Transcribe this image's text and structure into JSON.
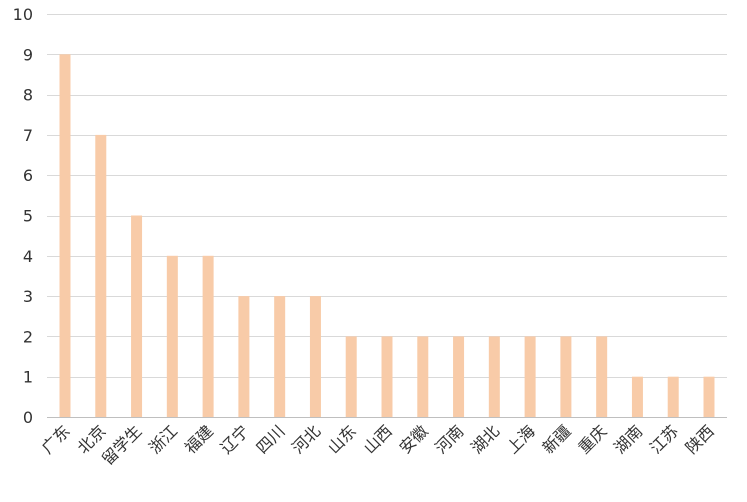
{
  "chart_data": {
    "type": "bar",
    "categories": [
      "广东",
      "北京",
      "留学生",
      "浙江",
      "福建",
      "辽宁",
      "四川",
      "河北",
      "山东",
      "山西",
      "安徽",
      "河南",
      "湖北",
      "上海",
      "新疆",
      "重庆",
      "湖南",
      "江苏",
      "陕西"
    ],
    "values": [
      9,
      7,
      5,
      4,
      4,
      3,
      3,
      3,
      2,
      2,
      2,
      2,
      2,
      2,
      2,
      2,
      1,
      1,
      1
    ],
    "title": "",
    "xlabel": "",
    "ylabel": "",
    "ylim": [
      0,
      10
    ],
    "yticks": [
      0,
      1,
      2,
      3,
      4,
      5,
      6,
      7,
      8,
      9,
      10
    ],
    "grid": true,
    "legend": "none",
    "colors": {
      "bar": "#f8cba8",
      "grid": "#d9d9d9",
      "text": "#333333"
    }
  }
}
